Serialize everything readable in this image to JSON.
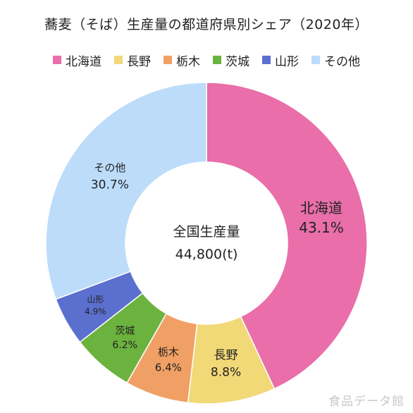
{
  "chart_data": {
    "type": "pie",
    "title": "蕎麦（そば）生産量の都道府県別シェア（2020年）",
    "center_label": "全国生産量",
    "center_value": "44,800(t)",
    "legend_position": "top",
    "slices": [
      {
        "label": "北海道",
        "value": 43.1,
        "value_label": "43.1%",
        "color": "#e96ea9"
      },
      {
        "label": "長野",
        "value": 8.8,
        "value_label": "8.8%",
        "color": "#f2d978"
      },
      {
        "label": "栃木",
        "value": 6.4,
        "value_label": "6.4%",
        "color": "#f0a064"
      },
      {
        "label": "茨城",
        "value": 6.2,
        "value_label": "6.2%",
        "color": "#6cb23e"
      },
      {
        "label": "山形",
        "value": 4.9,
        "value_label": "4.9%",
        "color": "#5b6fce"
      },
      {
        "label": "その他",
        "value": 30.7,
        "value_label": "30.7%",
        "color": "#bcdcfa"
      }
    ]
  },
  "watermark": "食品データ館"
}
